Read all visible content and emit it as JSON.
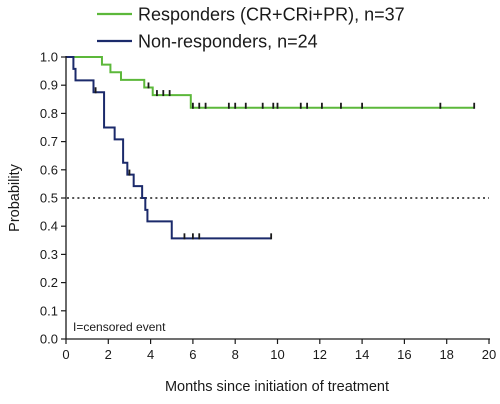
{
  "chart_data": {
    "type": "line",
    "subtype": "kaplan-meier",
    "xlabel": "Months since initiation of treatment",
    "ylabel": "Probability",
    "xlim": [
      0,
      20
    ],
    "ylim": [
      0,
      1.0
    ],
    "xticks": [
      0,
      2,
      4,
      6,
      8,
      10,
      12,
      14,
      16,
      18,
      20
    ],
    "yticks": [
      "0.0",
      "0.1",
      "0.2",
      "0.3",
      "0.4",
      "0.5",
      "0.6",
      "0.7",
      "0.8",
      "0.9",
      "1.0"
    ],
    "grid": false,
    "reference_line": {
      "y": 0.5,
      "style": "dotted"
    },
    "legend_position": "top",
    "note": "I=censored event",
    "series": [
      {
        "name": "Responders (CR+CRi+PR), n=37",
        "color": "#5cb83a",
        "steps": [
          [
            0,
            1.0
          ],
          [
            1.7,
            0.973
          ],
          [
            2.1,
            0.946
          ],
          [
            2.6,
            0.919
          ],
          [
            3.7,
            0.892
          ],
          [
            4.1,
            0.865
          ],
          [
            5.9,
            0.82
          ]
        ],
        "end_x": 19.3,
        "censored": [
          [
            3.9,
            0.892
          ],
          [
            4.3,
            0.865
          ],
          [
            4.6,
            0.865
          ],
          [
            4.9,
            0.865
          ],
          [
            6.0,
            0.82
          ],
          [
            6.3,
            0.82
          ],
          [
            6.6,
            0.82
          ],
          [
            7.7,
            0.82
          ],
          [
            8.0,
            0.82
          ],
          [
            8.5,
            0.82
          ],
          [
            9.3,
            0.82
          ],
          [
            9.8,
            0.82
          ],
          [
            10.0,
            0.82
          ],
          [
            11.1,
            0.82
          ],
          [
            11.4,
            0.82
          ],
          [
            12.1,
            0.82
          ],
          [
            13.0,
            0.82
          ],
          [
            14.0,
            0.82
          ],
          [
            17.7,
            0.82
          ],
          [
            19.3,
            0.82
          ]
        ]
      },
      {
        "name": "Non-responders, n=24",
        "color": "#1b2a6b",
        "steps": [
          [
            0,
            1.0
          ],
          [
            0.35,
            0.958
          ],
          [
            0.45,
            0.917
          ],
          [
            1.3,
            0.875
          ],
          [
            1.8,
            0.75
          ],
          [
            2.3,
            0.708
          ],
          [
            2.7,
            0.625
          ],
          [
            2.9,
            0.583
          ],
          [
            3.2,
            0.542
          ],
          [
            3.6,
            0.5
          ],
          [
            3.75,
            0.458
          ],
          [
            3.85,
            0.417
          ],
          [
            5.0,
            0.357
          ]
        ],
        "end_x": 9.7,
        "censored": [
          [
            1.4,
            0.875
          ],
          [
            3.0,
            0.583
          ],
          [
            5.6,
            0.357
          ],
          [
            6.0,
            0.357
          ],
          [
            6.3,
            0.357
          ],
          [
            9.7,
            0.357
          ]
        ]
      }
    ]
  }
}
